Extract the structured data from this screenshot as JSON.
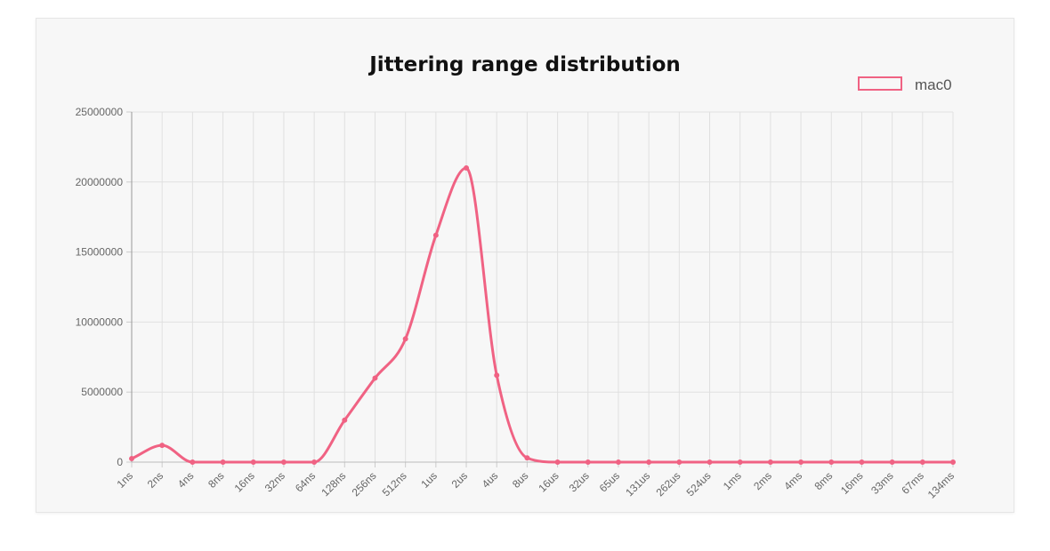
{
  "chart_data": {
    "type": "line",
    "title": "Jittering range distribution",
    "xlabel": "",
    "ylabel": "",
    "categories": [
      "1ns",
      "2ns",
      "4ns",
      "8ns",
      "16ns",
      "32ns",
      "64ns",
      "128ns",
      "256ns",
      "512ns",
      "1us",
      "2us",
      "4us",
      "8us",
      "16us",
      "32us",
      "65us",
      "131us",
      "262us",
      "524us",
      "1ms",
      "2ms",
      "4ms",
      "8ms",
      "16ms",
      "33ms",
      "67ms",
      "134ms"
    ],
    "series": [
      {
        "name": "mac0",
        "color": "#f06283",
        "values": [
          250000,
          1200000,
          0,
          0,
          0,
          0,
          0,
          3000000,
          6000000,
          8800000,
          16200000,
          21000000,
          6200000,
          300000,
          0,
          0,
          0,
          0,
          0,
          0,
          0,
          0,
          0,
          0,
          0,
          0,
          0,
          0
        ]
      }
    ],
    "ylim": [
      0,
      25000000
    ],
    "yticks": [
      "0",
      "5000000",
      "10000000",
      "15000000",
      "20000000",
      "25000000"
    ],
    "grid": true,
    "legend_position": "top-right",
    "x_tick_rotation_deg": -45
  }
}
